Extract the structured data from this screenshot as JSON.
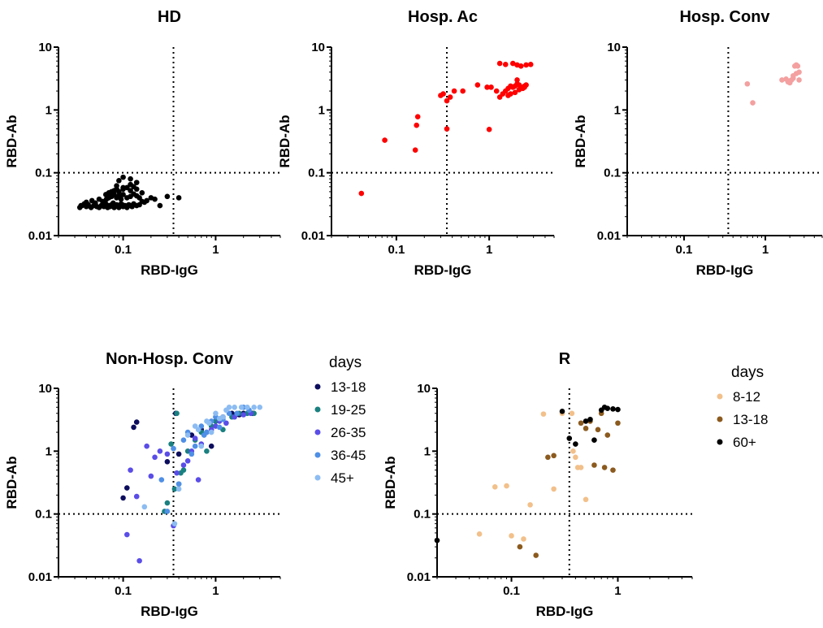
{
  "chart_data": [
    {
      "type": "scatter",
      "title": "HD",
      "xlabel": "RBD-IgG",
      "ylabel": "RBD-Ab",
      "xscale": "log",
      "yscale": "log",
      "xlim": [
        0.02,
        5
      ],
      "ylim": [
        0.01,
        10
      ],
      "xticks": [
        0.1,
        1
      ],
      "yticks": [
        0.01,
        0.1,
        1,
        10
      ],
      "xtick_labels": [
        "0.1",
        "1"
      ],
      "ytick_labels": [
        "0.01",
        "0.1",
        "1",
        "10"
      ],
      "threshold_x": 0.35,
      "threshold_y": 0.1,
      "color": "#000000",
      "series": [
        {
          "x": [
            0.034,
            0.036,
            0.038,
            0.04,
            0.042,
            0.045,
            0.048,
            0.05,
            0.052,
            0.055,
            0.058,
            0.06,
            0.062,
            0.065,
            0.068,
            0.07,
            0.072,
            0.075,
            0.078,
            0.08,
            0.082,
            0.085,
            0.088,
            0.09,
            0.092,
            0.095,
            0.098,
            0.1,
            0.105,
            0.11,
            0.115,
            0.12,
            0.125,
            0.13,
            0.14,
            0.15,
            0.16,
            0.17,
            0.18,
            0.2,
            0.22,
            0.25,
            0.3,
            0.4,
            0.035,
            0.04,
            0.046,
            0.05,
            0.055,
            0.06,
            0.066,
            0.07,
            0.075,
            0.08,
            0.085,
            0.09,
            0.095,
            0.1,
            0.11,
            0.12,
            0.13,
            0.14,
            0.15,
            0.16,
            0.065,
            0.07,
            0.075,
            0.08,
            0.085,
            0.09,
            0.1,
            0.11,
            0.12,
            0.13,
            0.14,
            0.085,
            0.1,
            0.12,
            0.14,
            0.09,
            0.1,
            0.12
          ],
          "y": [
            0.028,
            0.03,
            0.032,
            0.029,
            0.031,
            0.028,
            0.03,
            0.033,
            0.029,
            0.028,
            0.03,
            0.031,
            0.029,
            0.032,
            0.028,
            0.03,
            0.029,
            0.031,
            0.033,
            0.028,
            0.03,
            0.031,
            0.029,
            0.028,
            0.03,
            0.032,
            0.031,
            0.029,
            0.03,
            0.028,
            0.031,
            0.03,
            0.029,
            0.032,
            0.03,
            0.031,
            0.035,
            0.034,
            0.036,
            0.04,
            0.038,
            0.03,
            0.042,
            0.04,
            0.03,
            0.034,
            0.036,
            0.033,
            0.038,
            0.035,
            0.038,
            0.04,
            0.042,
            0.045,
            0.04,
            0.043,
            0.038,
            0.045,
            0.04,
            0.042,
            0.046,
            0.043,
            0.04,
            0.048,
            0.045,
            0.048,
            0.05,
            0.052,
            0.055,
            0.05,
            0.055,
            0.058,
            0.052,
            0.06,
            0.055,
            0.062,
            0.058,
            0.065,
            0.07,
            0.075,
            0.085,
            0.08
          ]
        }
      ]
    },
    {
      "type": "scatter",
      "title": "Hosp. Ac",
      "xlabel": "RBD-IgG",
      "ylabel": "RBD-Ab",
      "xscale": "log",
      "yscale": "log",
      "xlim": [
        0.02,
        5
      ],
      "ylim": [
        0.01,
        10
      ],
      "xticks": [
        0.1,
        1
      ],
      "yticks": [
        0.01,
        0.1,
        1,
        10
      ],
      "xtick_labels": [
        "0.1",
        "1"
      ],
      "ytick_labels": [
        "0.01",
        "0.1",
        "1",
        "10"
      ],
      "threshold_x": 0.35,
      "threshold_y": 0.1,
      "color": "#ff0000",
      "series": [
        {
          "x": [
            0.042,
            0.075,
            0.16,
            0.165,
            0.17,
            0.3,
            0.32,
            0.35,
            0.35,
            0.38,
            0.42,
            0.52,
            0.75,
            0.95,
            1.0,
            1.05,
            1.2,
            1.3,
            1.4,
            1.5,
            1.6,
            1.7,
            1.8,
            1.9,
            2.0,
            2.1,
            2.2,
            2.3,
            2.4,
            2.5,
            1.3,
            1.5,
            1.8,
            2.0,
            2.2,
            2.5,
            2.8,
            1.6,
            1.9,
            2.1,
            2.4,
            1.7,
            2.0
          ],
          "y": [
            0.047,
            0.33,
            0.23,
            0.57,
            0.78,
            1.7,
            1.8,
            1.4,
            0.5,
            1.6,
            2.0,
            2.0,
            2.5,
            2.3,
            0.49,
            2.3,
            2.0,
            1.6,
            1.8,
            2.0,
            2.2,
            2.4,
            2.3,
            2.4,
            2.6,
            2.5,
            2.3,
            2.2,
            2.4,
            2.5,
            5.5,
            5.3,
            5.5,
            5.2,
            5.0,
            5.2,
            5.3,
            1.7,
            1.9,
            2.1,
            2.3,
            1.8,
            3.0
          ]
        }
      ]
    },
    {
      "type": "scatter",
      "title": "Hosp. Conv",
      "xlabel": "RBD-IgG",
      "ylabel": "RBD-Ab",
      "xscale": "log",
      "yscale": "log",
      "xlim": [
        0.02,
        5
      ],
      "ylim": [
        0.01,
        10
      ],
      "xticks": [
        0.1,
        1
      ],
      "yticks": [
        0.01,
        0.1,
        1,
        10
      ],
      "xtick_labels": [
        "0.1",
        "1"
      ],
      "ytick_labels": [
        "0.01",
        "0.1",
        "1",
        "10"
      ],
      "threshold_x": 0.35,
      "threshold_y": 0.1,
      "color": "#f4a0a0",
      "series": [
        {
          "x": [
            0.6,
            0.7,
            1.6,
            1.9,
            2.0,
            2.1,
            2.2,
            2.3,
            2.4,
            2.5,
            2.6,
            2.2,
            2.4,
            2.6,
            2.0,
            1.8
          ],
          "y": [
            2.6,
            1.3,
            3.0,
            2.8,
            2.7,
            3.0,
            3.2,
            5.0,
            5.2,
            5.0,
            4.0,
            3.5,
            3.8,
            3.0,
            2.9,
            3.1
          ]
        }
      ]
    },
    {
      "type": "scatter",
      "title": "Non-Hosp. Conv",
      "xlabel": "RBD-IgG",
      "ylabel": "RBD-Ab",
      "xscale": "log",
      "yscale": "log",
      "xlim": [
        0.02,
        5
      ],
      "ylim": [
        0.01,
        10
      ],
      "xticks": [
        0.1,
        1
      ],
      "yticks": [
        0.01,
        0.1,
        1,
        10
      ],
      "xtick_labels": [
        "0.1",
        "1"
      ],
      "ytick_labels": [
        "0.01",
        "0.1",
        "1",
        "10"
      ],
      "threshold_x": 0.35,
      "threshold_y": 0.1,
      "legend_title": "days",
      "legend_position": "right",
      "series": [
        {
          "name": "13-18",
          "color": "#0d0d5e",
          "x": [
            0.1,
            0.11,
            0.13,
            0.14,
            0.3,
            0.4,
            0.55,
            0.9,
            1.0,
            1.2,
            1.5,
            2.0,
            2.5,
            0.7,
            1.8,
            0.37
          ],
          "y": [
            0.18,
            0.26,
            2.4,
            2.9,
            0.68,
            0.9,
            1.8,
            1.2,
            3.0,
            3.5,
            4.0,
            4.0,
            4.0,
            2.2,
            3.8,
            4.0
          ]
        },
        {
          "name": "19-25",
          "color": "#1a8080",
          "x": [
            0.28,
            0.3,
            0.33,
            0.36,
            0.4,
            0.45,
            0.5,
            0.6,
            0.7,
            0.8,
            0.9,
            1.0,
            1.2,
            1.5,
            1.8,
            2.2,
            2.6,
            0.38,
            0.42
          ],
          "y": [
            0.11,
            0.15,
            1.3,
            0.25,
            0.3,
            0.5,
            1.0,
            1.5,
            2.0,
            1.0,
            2.5,
            3.0,
            2.2,
            3.5,
            4.0,
            4.0,
            4.0,
            4.0,
            0.45
          ]
        },
        {
          "name": "26-35",
          "color": "#5a4de8",
          "x": [
            0.11,
            0.14,
            0.18,
            0.2,
            0.22,
            0.25,
            0.35,
            0.38,
            0.45,
            0.5,
            0.55,
            0.6,
            0.7,
            0.8,
            0.9,
            1.0,
            1.1,
            1.3,
            1.6,
            2.0,
            2.4,
            0.15,
            0.3,
            0.65,
            0.12
          ],
          "y": [
            0.047,
            0.19,
            1.2,
            0.4,
            0.8,
            1.0,
            0.065,
            0.45,
            0.6,
            0.7,
            1.0,
            1.6,
            1.3,
            2.0,
            2.2,
            2.5,
            3.0,
            2.8,
            3.5,
            3.8,
            4.0,
            0.018,
            0.9,
            0.35,
            0.5
          ]
        },
        {
          "name": "36-45",
          "color": "#4f8fe6",
          "x": [
            0.26,
            0.3,
            0.35,
            0.4,
            0.45,
            0.5,
            0.6,
            0.7,
            0.8,
            0.9,
            1.0,
            1.2,
            1.4,
            1.7,
            2.0,
            2.3,
            0.55,
            0.75,
            1.1
          ],
          "y": [
            0.35,
            0.11,
            1.1,
            0.3,
            1.5,
            2.0,
            1.2,
            2.5,
            2.0,
            3.0,
            3.5,
            3.2,
            4.0,
            4.0,
            5.0,
            4.5,
            0.9,
            1.8,
            2.4
          ]
        },
        {
          "name": "45+",
          "color": "#8cbcf2",
          "x": [
            0.17,
            0.36,
            0.4,
            0.5,
            0.6,
            0.7,
            0.8,
            0.9,
            1.0,
            1.2,
            1.4,
            1.6,
            1.9,
            2.2,
            2.6,
            3.0,
            0.65,
            0.85,
            1.1,
            1.3
          ],
          "y": [
            0.13,
            0.07,
            0.25,
            1.8,
            2.5,
            1.2,
            3.0,
            2.0,
            4.0,
            3.5,
            5.0,
            5.0,
            5.0,
            5.0,
            5.0,
            5.0,
            2.2,
            2.8,
            3.3,
            4.5
          ]
        }
      ]
    },
    {
      "type": "scatter",
      "title": "R",
      "xlabel": "RBD-IgG",
      "ylabel": "RBD-Ab",
      "xscale": "log",
      "yscale": "log",
      "xlim": [
        0.02,
        5
      ],
      "ylim": [
        0.01,
        10
      ],
      "xticks": [
        0.1,
        1
      ],
      "yticks": [
        0.01,
        0.1,
        1,
        10
      ],
      "xtick_labels": [
        "0.1",
        "1"
      ],
      "ytick_labels": [
        "0.01",
        "0.1",
        "1",
        "10"
      ],
      "threshold_x": 0.35,
      "threshold_y": 0.1,
      "legend_title": "days",
      "legend_position": "right",
      "series": [
        {
          "name": "8-12",
          "color": "#f2c08a",
          "x": [
            0.05,
            0.07,
            0.09,
            0.1,
            0.13,
            0.15,
            0.2,
            0.25,
            0.3,
            0.37,
            0.4,
            0.45,
            0.5,
            0.38,
            0.42
          ],
          "y": [
            0.048,
            0.27,
            0.28,
            0.045,
            0.04,
            0.14,
            3.9,
            0.25,
            4.0,
            4.0,
            0.8,
            0.55,
            0.17,
            1.0,
            0.55
          ]
        },
        {
          "name": "13-18",
          "color": "#8b5a1e",
          "x": [
            0.12,
            0.17,
            0.22,
            0.25,
            0.45,
            0.5,
            0.55,
            0.6,
            0.65,
            0.7,
            0.9,
            1.0,
            0.75,
            0.8
          ],
          "y": [
            0.03,
            0.022,
            0.8,
            0.85,
            2.8,
            2.3,
            3.0,
            0.6,
            2.2,
            4.0,
            0.5,
            2.8,
            0.55,
            1.8
          ]
        },
        {
          "name": "60+",
          "color": "#000000",
          "x": [
            0.02,
            0.3,
            0.35,
            0.4,
            0.5,
            0.6,
            0.7,
            0.8,
            0.9,
            1.0,
            0.55,
            0.75
          ],
          "y": [
            0.038,
            4.3,
            1.6,
            1.3,
            3.0,
            1.5,
            4.5,
            4.8,
            4.7,
            4.6,
            3.2,
            5.0
          ]
        }
      ]
    }
  ]
}
